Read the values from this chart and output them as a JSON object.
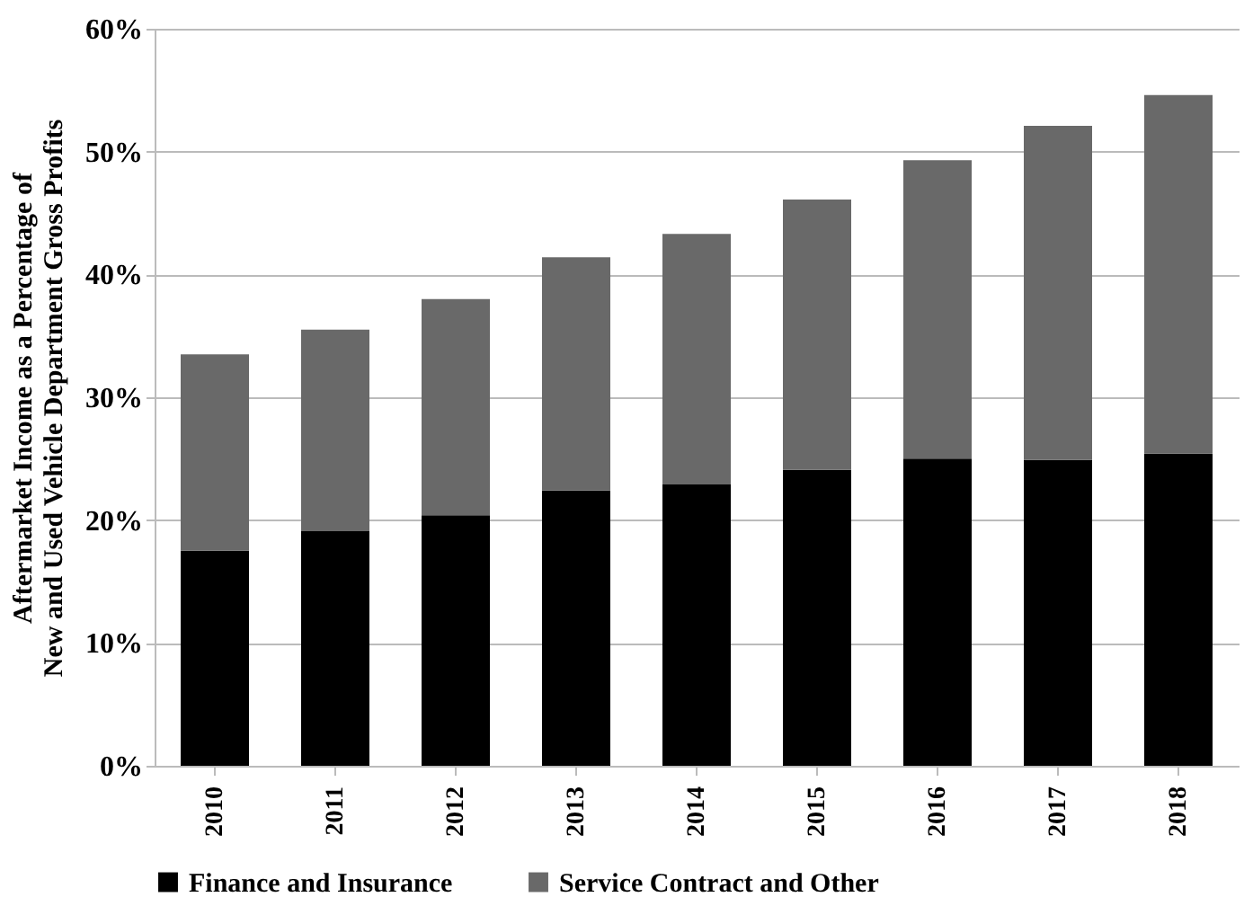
{
  "chart_data": {
    "type": "bar",
    "stacked": true,
    "ylabel": "Aftermarket Income as a Percentage of\nNew and Used Vehicle Department Gross Profits",
    "categories": [
      "2010",
      "2011",
      "2012",
      "2013",
      "2014",
      "2015",
      "2016",
      "2017",
      "2018"
    ],
    "series": [
      {
        "name": "Finance and Insurance",
        "color": "#000000",
        "values": [
          17.5,
          19.1,
          20.4,
          22.4,
          22.9,
          24.1,
          25.0,
          24.9,
          25.4
        ]
      },
      {
        "name": "Service Contract and Other",
        "color": "#696969",
        "values": [
          16.0,
          16.4,
          17.6,
          19.0,
          20.4,
          22.0,
          24.3,
          27.2,
          29.2
        ]
      }
    ],
    "ylim": [
      0,
      60
    ],
    "yticks": [
      {
        "value": 0,
        "label": "0%"
      },
      {
        "value": 10,
        "label": "10%"
      },
      {
        "value": 20,
        "label": "20%"
      },
      {
        "value": 30,
        "label": "30%"
      },
      {
        "value": 40,
        "label": "40%"
      },
      {
        "value": 50,
        "label": "50%"
      },
      {
        "value": 60,
        "label": "60%"
      }
    ],
    "grid": "y",
    "legend": "bottom"
  }
}
